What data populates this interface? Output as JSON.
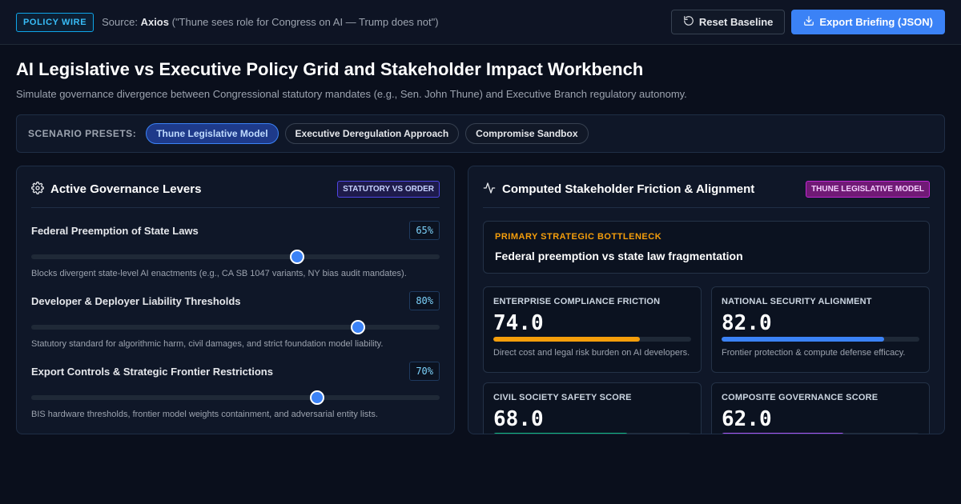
{
  "topbar": {
    "badge": "POLICY WIRE",
    "source_prefix": "Source:",
    "source_name": "Axios",
    "source_quote": "(\"Thune sees role for Congress on AI — Trump does not\")",
    "reset_label": "Reset Baseline",
    "export_label": "Export Briefing (JSON)"
  },
  "header": {
    "title": "AI Legislative vs Executive Policy Grid and Stakeholder Impact Workbench",
    "subtitle": "Simulate governance divergence between Congressional statutory mandates (e.g., Sen. John Thune) and Executive Branch regulatory autonomy."
  },
  "presets": {
    "label": "SCENARIO PRESETS:",
    "items": [
      {
        "label": "Thune Legislative Model",
        "active": true
      },
      {
        "label": "Executive Deregulation Approach",
        "active": false
      },
      {
        "label": "Compromise Sandbox",
        "active": false
      }
    ]
  },
  "levers_panel": {
    "title": "Active Governance Levers",
    "tag": "STATUTORY VS ORDER",
    "levers": [
      {
        "name": "Federal Preemption of State Laws",
        "value_label": "65%",
        "value": 65,
        "desc": "Blocks divergent state-level AI enactments (e.g., CA SB 1047 variants, NY bias audit mandates)."
      },
      {
        "name": "Developer & Deployer Liability Thresholds",
        "value_label": "80%",
        "value": 80,
        "desc": "Statutory standard for algorithmic harm, civil damages, and strict foundation model liability."
      },
      {
        "name": "Export Controls & Strategic Frontier Restrictions",
        "value_label": "70%",
        "value": 70,
        "desc": "BIS hardware thresholds, frontier model weights containment, and adversarial entity lists."
      }
    ]
  },
  "impact_panel": {
    "title": "Computed Stakeholder Friction & Alignment",
    "tag": "THUNE LEGISLATIVE MODEL",
    "bottleneck_label": "PRIMARY STRATEGIC BOTTLENECK",
    "bottleneck_text": "Federal preemption vs state law fragmentation",
    "metrics": [
      {
        "label": "ENTERPRISE COMPLIANCE FRICTION",
        "value": "74.0",
        "level": 74,
        "color": "#f59e0b",
        "desc": "Direct cost and legal risk burden on AI developers."
      },
      {
        "label": "NATIONAL SECURITY ALIGNMENT",
        "value": "82.0",
        "level": 82,
        "color": "#3b82f6",
        "desc": "Frontier protection & compute defense efficacy."
      },
      {
        "label": "CIVIL SOCIETY SAFETY SCORE",
        "value": "68.0",
        "level": 68,
        "color": "#10b981",
        "desc": ""
      },
      {
        "label": "COMPOSITE GOVERNANCE SCORE",
        "value": "62.0",
        "level": 62,
        "color": "#a855f7",
        "desc": ""
      }
    ]
  }
}
